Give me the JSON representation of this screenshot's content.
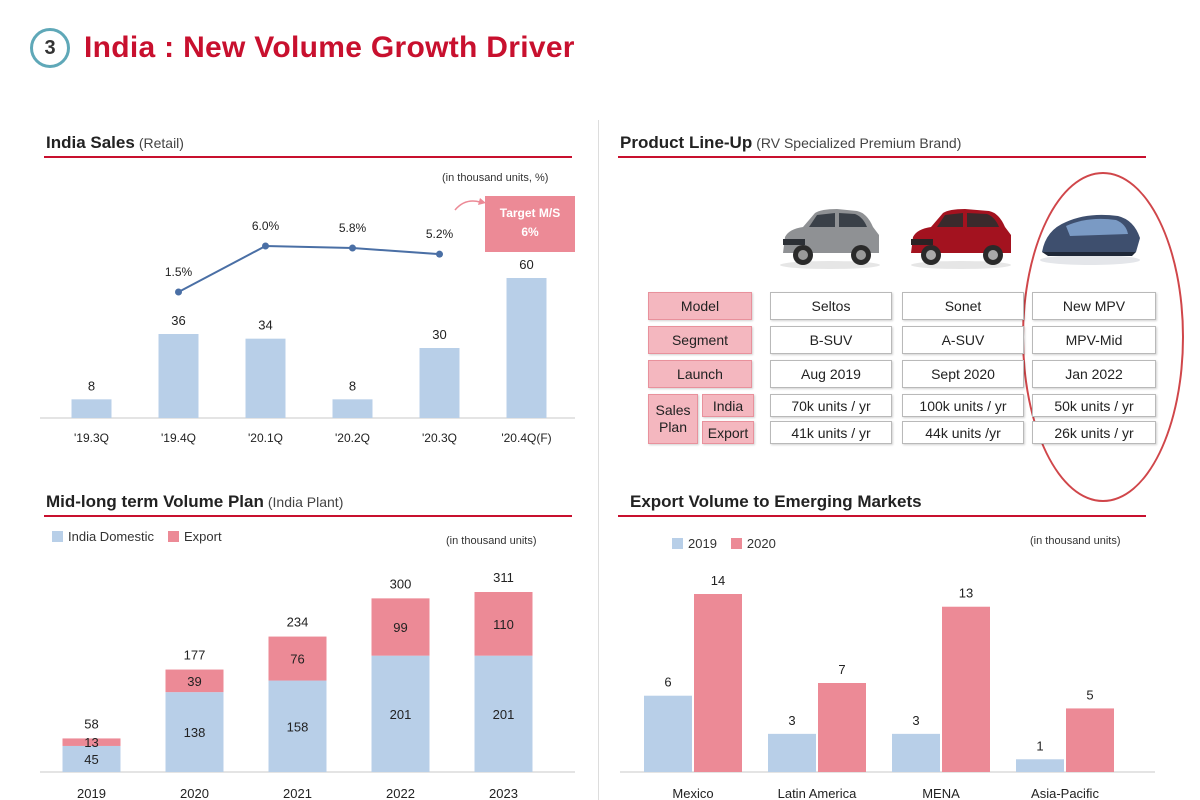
{
  "header": {
    "step_number": "3",
    "title": "India : New Volume Growth Driver"
  },
  "colors": {
    "accent_red": "#c8102e",
    "bar_blue": "#b8cfe8",
    "bar_pink": "#ec8a96",
    "line_blue": "#4a6fa5"
  },
  "india_sales": {
    "title": "India Sales",
    "subtitle": "(Retail)",
    "unit_note": "(in thousand units, %)",
    "target_box": {
      "line1": "Target M/S",
      "line2": "6%"
    }
  },
  "product_lineup": {
    "title": "Product Line-Up",
    "subtitle": "(RV Specialized Premium Brand)",
    "row_labels": {
      "model": "Model",
      "segment": "Segment",
      "launch": "Launch",
      "sales": "Sales",
      "plan": "Plan",
      "india": "India",
      "export": "Export"
    },
    "cars": [
      {
        "model": "Seltos",
        "segment": "B-SUV",
        "launch": "Aug 2019",
        "india": "70k units / yr",
        "export": "41k units / yr",
        "image": "grey-suv-image"
      },
      {
        "model": "Sonet",
        "segment": "A-SUV",
        "launch": "Sept 2020",
        "india": "100k units / yr",
        "export": "44k units /yr",
        "image": "red-suv-image"
      },
      {
        "model": "New MPV",
        "segment": "MPV-Mid",
        "launch": "Jan 2022",
        "india": "50k units / yr",
        "export": "26k units / yr",
        "image": "concept-mpv-image"
      }
    ]
  },
  "volume_plan": {
    "title": "Mid-long term Volume Plan",
    "subtitle": "(India Plant)",
    "unit_note": "(in thousand units)",
    "legend": [
      "India Domestic",
      "Export"
    ]
  },
  "export_volume": {
    "title": "Export Volume to Emerging Markets",
    "unit_note": "(in thousand units)",
    "legend": [
      "2019",
      "2020"
    ]
  },
  "chart_data": [
    {
      "type": "bar",
      "title": "India Sales (Retail)",
      "categories": [
        "'19.3Q",
        "'19.4Q",
        "'20.1Q",
        "'20.2Q",
        "'20.3Q",
        "'20.4Q(F)"
      ],
      "values": [
        8,
        36,
        34,
        8,
        30,
        60
      ],
      "line_series": {
        "values": [
          null,
          1.5,
          6.0,
          5.8,
          5.2,
          null
        ],
        "labels": [
          "",
          "1.5%",
          "6.0%",
          "5.8%",
          "5.2%",
          ""
        ]
      },
      "ylim": [
        0,
        65
      ]
    },
    {
      "type": "bar",
      "title": "Mid-long term Volume Plan (India Plant)",
      "categories": [
        "2019",
        "2020",
        "2021",
        "2022",
        "2023"
      ],
      "series": [
        {
          "name": "India Domestic",
          "values": [
            45,
            138,
            158,
            201,
            201
          ]
        },
        {
          "name": "Export",
          "values": [
            13,
            39,
            76,
            99,
            110
          ]
        }
      ],
      "totals": [
        58,
        177,
        234,
        300,
        311
      ],
      "stacked": true,
      "ylim": [
        0,
        330
      ]
    },
    {
      "type": "bar",
      "title": "Export Volume to Emerging Markets",
      "categories": [
        "Mexico",
        "Latin America",
        "MENA",
        "Asia-Pacific"
      ],
      "series": [
        {
          "name": "2019",
          "values": [
            6,
            3,
            3,
            1
          ]
        },
        {
          "name": "2020",
          "values": [
            14,
            7,
            13,
            5
          ]
        }
      ],
      "ylim": [
        0,
        15
      ]
    }
  ]
}
